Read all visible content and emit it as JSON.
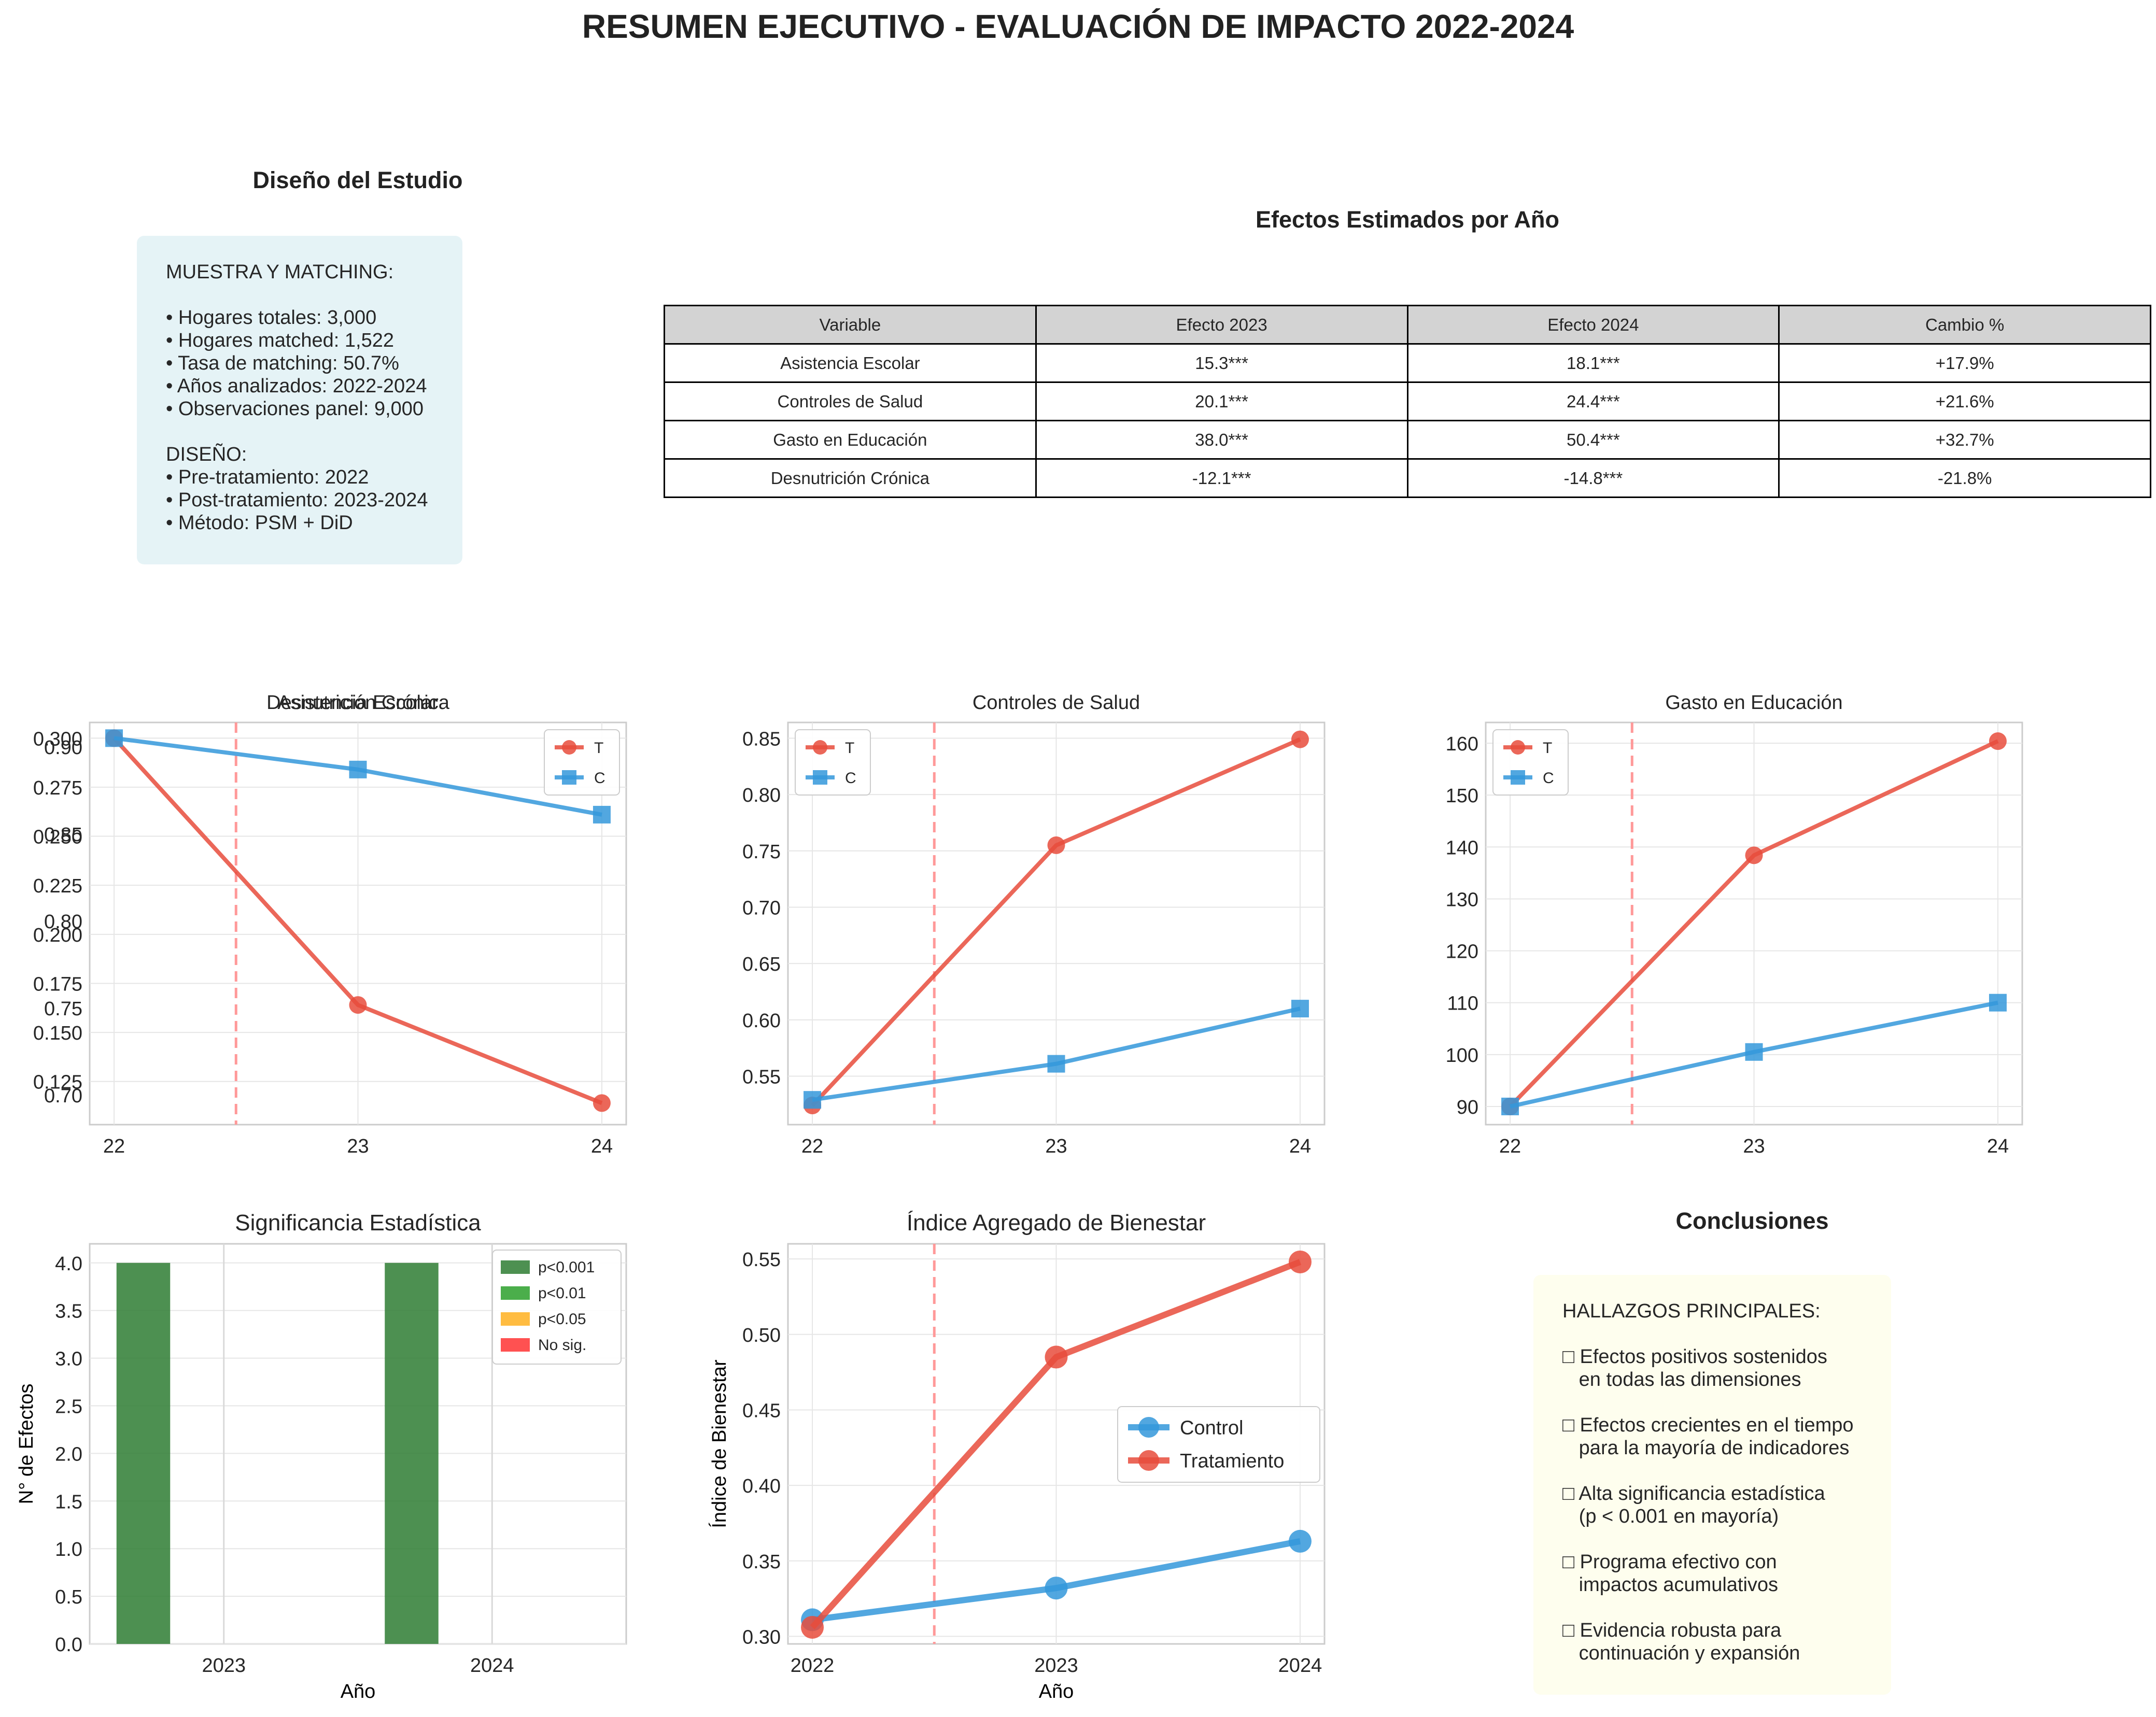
{
  "title": "RESUMEN EJECUTIVO - EVALUACIÓN DE IMPACTO 2022-2024",
  "design": {
    "title": "Diseño del Estudio",
    "lines": [
      "MUESTRA Y MATCHING:",
      "",
      "• Hogares totales: 3,000",
      "• Hogares matched: 1,522",
      "• Tasa de matching: 50.7%",
      "• Años analizados: 2022-2024",
      "• Observaciones panel: 9,000",
      "",
      "DISEÑO:",
      "• Pre-tratamiento: 2022",
      "• Post-tratamiento: 2023-2024",
      "• Método: PSM + DiD"
    ]
  },
  "effects_table": {
    "title": "Efectos Estimados por Año",
    "headers": [
      "Variable",
      "Efecto 2023",
      "Efecto 2024",
      "Cambio %"
    ],
    "rows": [
      [
        "Asistencia Escolar",
        "15.3***",
        "18.1***",
        "+17.9%"
      ],
      [
        "Controles de Salud",
        "20.1***",
        "24.4***",
        "+21.6%"
      ],
      [
        "Gasto en Educación",
        "38.0***",
        "50.4***",
        "+32.7%"
      ],
      [
        "Desnutrición Crónica",
        "-12.1***",
        "-14.8***",
        "-21.8%"
      ]
    ]
  },
  "conclusions": {
    "title": "Conclusiones",
    "lines": [
      "HALLAZGOS PRINCIPALES:",
      "",
      "□ Efectos positivos sostenidos",
      "   en todas las dimensiones",
      "",
      "□ Efectos crecientes en el tiempo",
      "   para la mayoría de indicadores",
      "",
      "□ Alta significancia estadística",
      "   (p < 0.001 en mayoría)",
      "",
      "□ Programa efectivo con",
      "   impactos acumulativos",
      "",
      "□ Evidencia robusta para",
      "   continuación y expansión"
    ]
  },
  "colors": {
    "treatment": "#e74c3c",
    "control": "#3498db",
    "vline": "#ff9999",
    "p001": "#2e7d32",
    "p01": "#2ca02c",
    "p05": "#ffb020",
    "nosig": "#ff3333"
  },
  "chart_data": [
    {
      "id": "panel1",
      "type": "line",
      "title": "Desnutrición Crónica",
      "overlapping_title": "Asistencia Escolar",
      "x": [
        "22",
        "23",
        "24"
      ],
      "ylim": [
        0.103,
        0.308
      ],
      "yticks": [
        0.125,
        0.15,
        0.175,
        0.2,
        0.225,
        0.25,
        0.275,
        0.3
      ],
      "ytick_labels": [
        "0.125",
        "0.150",
        "0.175",
        "0.200",
        "0.225",
        "0.250",
        "0.275",
        "0.300"
      ],
      "overlap_ylim": [
        0.683,
        0.914
      ],
      "overlap_yticks": [
        0.7,
        0.75,
        0.8,
        0.85,
        0.9
      ],
      "overlap_ytick_labels": [
        "0.70",
        "0.75",
        "0.80",
        "0.85",
        "0.90"
      ],
      "vline_x": 0.5,
      "legend": [
        "T",
        "C"
      ],
      "series": [
        {
          "name": "T",
          "values": [
            0.3,
            0.164,
            0.114
          ]
        },
        {
          "name": "C",
          "values": [
            0.3,
            0.284,
            0.261
          ]
        }
      ]
    },
    {
      "id": "panel2",
      "type": "line",
      "title": "Controles de Salud",
      "x": [
        "22",
        "23",
        "24"
      ],
      "ylim": [
        0.507,
        0.864
      ],
      "yticks": [
        0.55,
        0.6,
        0.65,
        0.7,
        0.75,
        0.8,
        0.85
      ],
      "ytick_labels": [
        "0.55",
        "0.60",
        "0.65",
        "0.70",
        "0.75",
        "0.80",
        "0.85"
      ],
      "vline_x": 0.5,
      "legend": [
        "T",
        "C"
      ],
      "series": [
        {
          "name": "T",
          "values": [
            0.524,
            0.755,
            0.849
          ]
        },
        {
          "name": "C",
          "values": [
            0.529,
            0.561,
            0.61
          ]
        }
      ]
    },
    {
      "id": "panel3",
      "type": "line",
      "title": "Gasto en Educación",
      "x": [
        "22",
        "23",
        "24"
      ],
      "ylim": [
        86.5,
        164.0
      ],
      "yticks": [
        90,
        100,
        110,
        120,
        130,
        140,
        150,
        160
      ],
      "ytick_labels": [
        "90",
        "100",
        "110",
        "120",
        "130",
        "140",
        "150",
        "160"
      ],
      "vline_x": 0.5,
      "legend": [
        "T",
        "C"
      ],
      "series": [
        {
          "name": "T",
          "values": [
            90.0,
            138.4,
            160.4
          ]
        },
        {
          "name": "C",
          "values": [
            90.0,
            100.5,
            110.0
          ]
        }
      ]
    },
    {
      "id": "sig",
      "type": "bar",
      "title": "Significancia Estadística",
      "xlabel": "Año",
      "ylabel": "N° de Efectos",
      "categories": [
        "2023",
        "2024"
      ],
      "ylim": [
        0,
        4.2
      ],
      "yticks": [
        0,
        0.5,
        1.0,
        1.5,
        2.0,
        2.5,
        3.0,
        3.5,
        4.0
      ],
      "ytick_labels": [
        "0.0",
        "0.5",
        "1.0",
        "1.5",
        "2.0",
        "2.5",
        "3.0",
        "3.5",
        "4.0"
      ],
      "legend": [
        "p<0.001",
        "p<0.01",
        "p<0.05",
        "No sig."
      ],
      "series": [
        {
          "name": "p<0.001",
          "values": [
            4,
            4
          ]
        },
        {
          "name": "p<0.01",
          "values": [
            0,
            0
          ]
        },
        {
          "name": "p<0.05",
          "values": [
            0,
            0
          ]
        },
        {
          "name": "No sig.",
          "values": [
            0,
            0
          ]
        }
      ]
    },
    {
      "id": "index",
      "type": "line",
      "title": "Índice Agregado de Bienestar",
      "xlabel": "Año",
      "ylabel": "Índice de Bienestar",
      "x": [
        "2022",
        "2023",
        "2024"
      ],
      "ylim": [
        0.295,
        0.56
      ],
      "yticks": [
        0.3,
        0.35,
        0.4,
        0.45,
        0.5,
        0.55
      ],
      "ytick_labels": [
        "0.30",
        "0.35",
        "0.40",
        "0.45",
        "0.50",
        "0.55"
      ],
      "vline_x": 0.5,
      "legend": [
        "Control",
        "Tratamiento"
      ],
      "series": [
        {
          "name": "Control",
          "values": [
            0.311,
            0.332,
            0.363
          ]
        },
        {
          "name": "Tratamiento",
          "values": [
            0.306,
            0.485,
            0.548
          ]
        }
      ]
    }
  ]
}
